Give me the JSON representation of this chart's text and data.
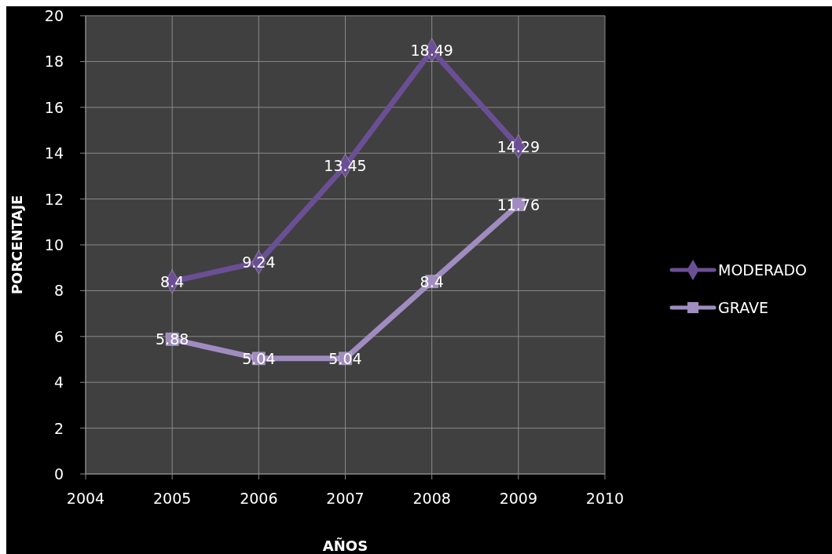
{
  "chart_data": {
    "type": "line",
    "xlabel": "AÑOS",
    "ylabel": "PORCENTAJE",
    "x": [
      2005,
      2006,
      2007,
      2008,
      2009
    ],
    "series": [
      {
        "name": "MODERADO",
        "color": "#6b4f95",
        "marker": "diamond",
        "values": [
          8.4,
          9.24,
          13.45,
          18.49,
          14.29
        ]
      },
      {
        "name": "GRAVE",
        "color": "#a08cc0",
        "marker": "square",
        "values": [
          5.88,
          5.04,
          5.04,
          8.4,
          11.76
        ]
      }
    ],
    "xlim": [
      2004,
      2010
    ],
    "xticks": [
      2004,
      2005,
      2006,
      2007,
      2008,
      2009,
      2010
    ],
    "ylim": [
      0,
      20
    ],
    "yticks": [
      0,
      2,
      4,
      6,
      8,
      10,
      12,
      14,
      16,
      18,
      20
    ],
    "grid": true,
    "legend": "right",
    "data_labels": true,
    "line_style": "solid"
  }
}
